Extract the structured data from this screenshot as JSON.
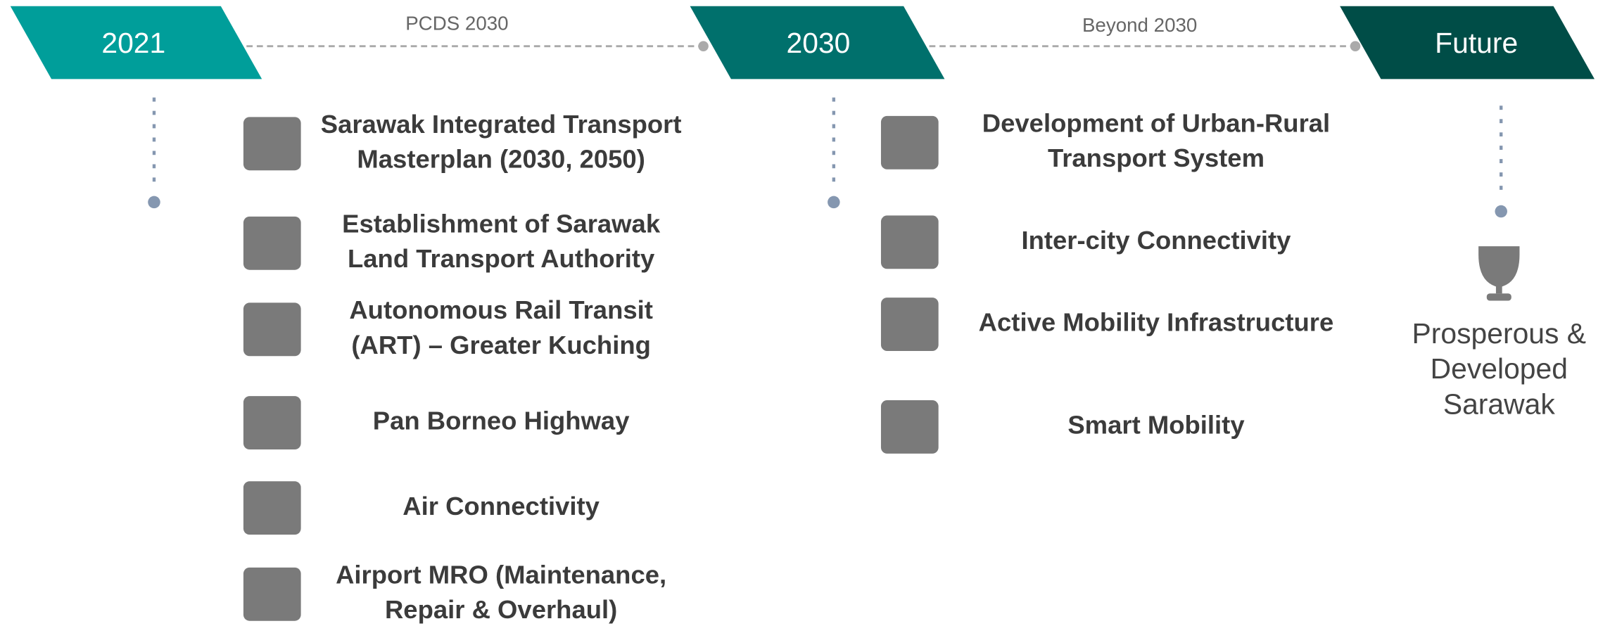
{
  "milestones": [
    {
      "label": "2021"
    },
    {
      "label": "2030"
    },
    {
      "label": "Future"
    }
  ],
  "connectors": [
    {
      "label": "PCDS 2030"
    },
    {
      "label": "Beyond 2030"
    }
  ],
  "phase_2021_items": [
    {
      "lines": [
        "Sarawak Integrated Transport",
        "Masterplan (2030, 2050)"
      ]
    },
    {
      "lines": [
        "Establishment of Sarawak",
        "Land Transport Authority"
      ]
    },
    {
      "lines": [
        "Autonomous Rail Transit",
        "(ART) – Greater Kuching"
      ]
    },
    {
      "lines": [
        "Pan Borneo Highway"
      ]
    },
    {
      "lines": [
        "Air Connectivity"
      ]
    },
    {
      "lines": [
        "Airport MRO (Maintenance,",
        "Repair & Overhaul)"
      ]
    }
  ],
  "phase_2030_items": [
    {
      "lines": [
        "Development of Urban-Rural",
        "Transport System"
      ]
    },
    {
      "lines": [
        "Inter-city Connectivity"
      ]
    },
    {
      "lines": [
        "Active Mobility Infrastructure"
      ]
    },
    {
      "lines": [
        "Smart Mobility"
      ]
    }
  ],
  "goal": {
    "lines": [
      "Prosperous &",
      "Developed",
      "Sarawak"
    ]
  }
}
